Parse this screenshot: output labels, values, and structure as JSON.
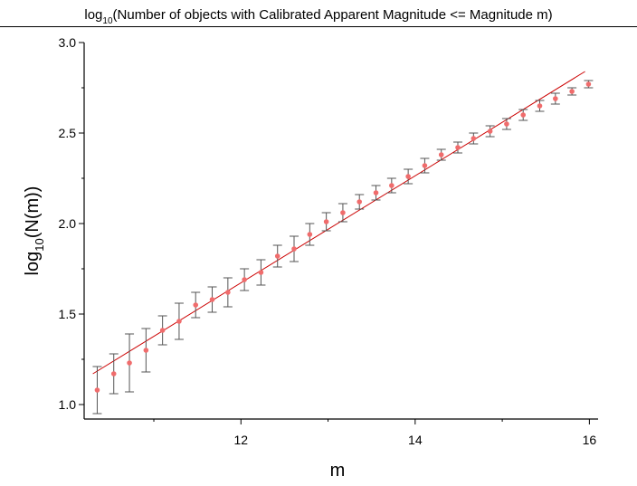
{
  "chart_data": {
    "type": "scatter",
    "title_main": "log",
    "title_sub": "10",
    "title_rest": "(Number of objects with Calibrated Apparent Magnitude <= Magnitude m)",
    "xlabel": "m",
    "ylabel_main": "log",
    "ylabel_sub": "10",
    "ylabel_rest": "(N(m))",
    "xlim": [
      10.2,
      16.1
    ],
    "ylim": [
      0.92,
      3.0
    ],
    "xticks": [
      12,
      14,
      16
    ],
    "xtick_labels": [
      "12",
      "14",
      "16"
    ],
    "yticks": [
      1.0,
      1.5,
      2.0,
      2.5,
      3.0
    ],
    "ytick_labels": [
      "1.0",
      "1.5",
      "2.0",
      "2.5",
      "3.0"
    ],
    "grid": false,
    "colors": {
      "points": "#f06c6c",
      "fit_line": "#cc0000",
      "error_bars": "#555555",
      "axis": "#000000"
    },
    "fit_line": {
      "x": [
        10.3,
        15.95
      ],
      "y": [
        1.17,
        2.84
      ]
    },
    "series": [
      {
        "x": [
          10.35,
          10.54,
          10.72,
          10.91,
          11.1,
          11.29,
          11.48,
          11.67,
          11.85,
          12.04,
          12.23,
          12.42,
          12.61,
          12.79,
          12.98,
          13.17,
          13.36,
          13.55,
          13.73,
          13.92,
          14.11,
          14.3,
          14.49,
          14.67,
          14.86,
          15.05,
          15.24,
          15.43,
          15.61,
          15.8,
          15.99
        ],
        "y": [
          1.08,
          1.17,
          1.23,
          1.3,
          1.41,
          1.46,
          1.55,
          1.58,
          1.62,
          1.69,
          1.73,
          1.82,
          1.86,
          1.94,
          2.01,
          2.06,
          2.12,
          2.17,
          2.21,
          2.26,
          2.32,
          2.38,
          2.42,
          2.47,
          2.51,
          2.55,
          2.6,
          2.65,
          2.69,
          2.73,
          2.77
        ],
        "yerr": [
          0.13,
          0.11,
          0.16,
          0.12,
          0.08,
          0.1,
          0.07,
          0.07,
          0.08,
          0.06,
          0.07,
          0.06,
          0.07,
          0.06,
          0.05,
          0.05,
          0.04,
          0.04,
          0.04,
          0.04,
          0.04,
          0.03,
          0.03,
          0.03,
          0.03,
          0.03,
          0.03,
          0.03,
          0.03,
          0.02,
          0.02
        ]
      }
    ]
  }
}
